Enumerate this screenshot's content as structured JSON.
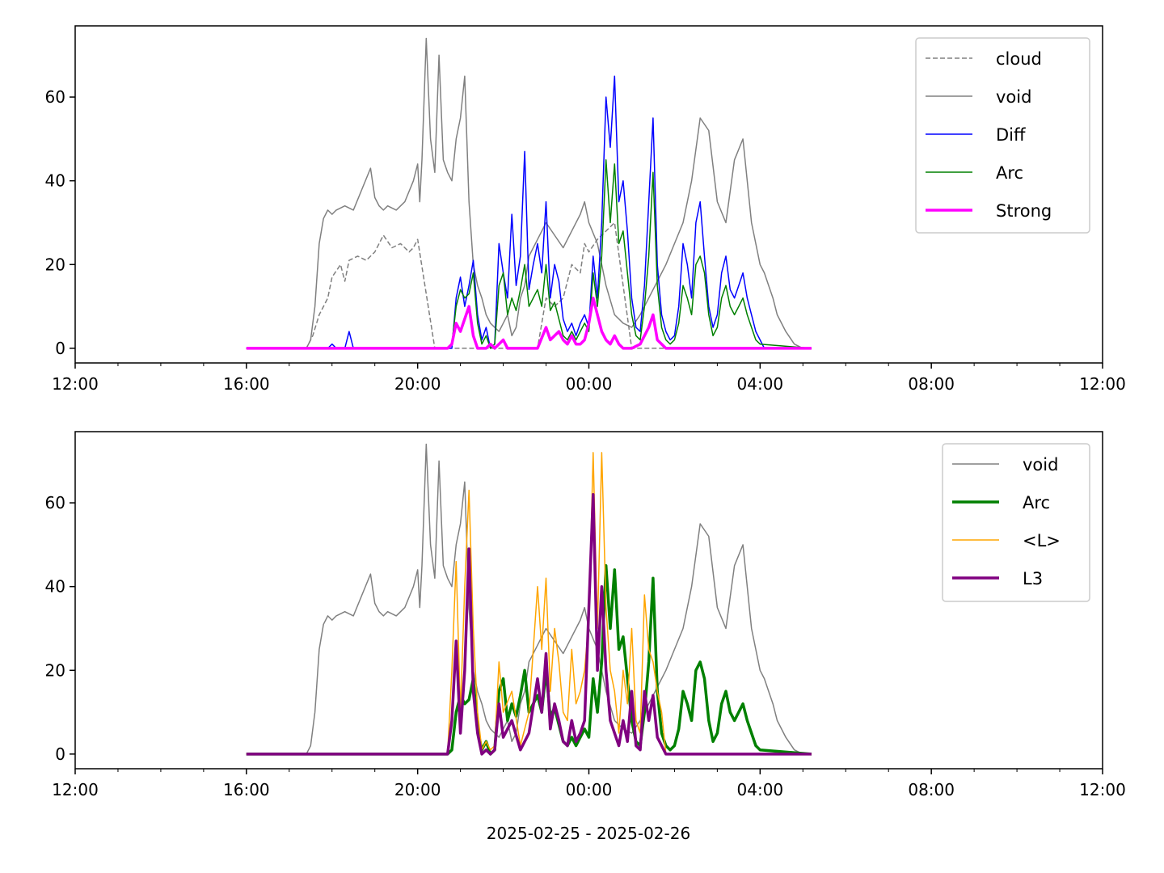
{
  "chart_data": [
    {
      "type": "line",
      "title": "",
      "xlabel": "",
      "ylabel": "",
      "xlim": [
        -4,
        20
      ],
      "ylim": [
        -3.5,
        77
      ],
      "x_ticks": [
        -4,
        0,
        4,
        8,
        12,
        16,
        20
      ],
      "x_tick_labels": [
        "12:00",
        "16:00",
        "20:00",
        "00:00",
        "04:00",
        "08:00",
        "12:00"
      ],
      "y_ticks": [
        0,
        20,
        40,
        60
      ],
      "y_tick_labels": [
        "0",
        "20",
        "40",
        "60"
      ],
      "legend_position": "top-right",
      "grid": false,
      "series": [
        {
          "name": "cloud",
          "color": "#808080",
          "style": "dashed",
          "width": 1.5,
          "x": [
            0,
            1.4,
            1.55,
            1.7,
            1.8,
            1.9,
            2.0,
            2.2,
            2.3,
            2.4,
            2.6,
            2.8,
            3.0,
            3.2,
            3.4,
            3.6,
            3.8,
            3.9,
            4.0,
            4.4,
            4.8,
            5.0,
            5.4,
            5.8,
            6.0,
            6.3,
            6.6,
            6.8,
            7.0,
            7.2,
            7.4,
            7.6,
            7.8,
            7.9,
            8.0,
            8.2,
            8.4,
            8.6,
            9.0,
            9.4,
            9.8,
            10.2,
            10.6,
            11.0,
            11.4,
            11.8,
            12.0,
            12.1,
            12.3,
            12.5,
            12.8,
            13.2
          ],
          "y": [
            0,
            0,
            3,
            8,
            10,
            12,
            17,
            20,
            16,
            21,
            22,
            21,
            23,
            27,
            24,
            25,
            23,
            24,
            26,
            0,
            0,
            0,
            0,
            0,
            0,
            0,
            0,
            0,
            12,
            10,
            12,
            20,
            18,
            25,
            23,
            26,
            28,
            30,
            0,
            0,
            0,
            0,
            0,
            0,
            0,
            0,
            0,
            0,
            0,
            0,
            0,
            0
          ]
        },
        {
          "name": "void",
          "color": "#808080",
          "style": "solid",
          "width": 1.5,
          "x": [
            0,
            1.4,
            1.5,
            1.6,
            1.7,
            1.8,
            1.9,
            2.0,
            2.1,
            2.3,
            2.5,
            2.7,
            2.9,
            3.0,
            3.1,
            3.2,
            3.3,
            3.5,
            3.7,
            3.9,
            4.0,
            4.05,
            4.1,
            4.2,
            4.3,
            4.4,
            4.5,
            4.6,
            4.7,
            4.8,
            4.9,
            5.0,
            5.1,
            5.2,
            5.3,
            5.4,
            5.5,
            5.6,
            5.7,
            5.8,
            5.9,
            6.0,
            6.1,
            6.2,
            6.3,
            6.4,
            6.5,
            6.6,
            6.8,
            7.0,
            7.2,
            7.4,
            7.6,
            7.8,
            7.9,
            8.0,
            8.2,
            8.4,
            8.6,
            8.8,
            9.0,
            9.2,
            9.4,
            9.6,
            9.8,
            10.0,
            10.2,
            10.4,
            10.6,
            10.8,
            11.0,
            11.2,
            11.4,
            11.6,
            11.8,
            11.9,
            12.0,
            12.1,
            12.2,
            12.3,
            12.4,
            12.6,
            12.8,
            13.0,
            13.2
          ],
          "y": [
            0,
            0,
            2,
            10,
            25,
            31,
            33,
            32,
            33,
            34,
            33,
            38,
            43,
            36,
            34,
            33,
            34,
            33,
            35,
            40,
            44,
            35,
            45,
            74,
            50,
            42,
            70,
            45,
            42,
            40,
            50,
            55,
            65,
            35,
            20,
            15,
            12,
            8,
            6,
            5,
            4,
            6,
            8,
            3,
            5,
            12,
            15,
            22,
            26,
            30,
            27,
            24,
            28,
            32,
            35,
            30,
            25,
            15,
            8,
            6,
            5,
            8,
            12,
            16,
            20,
            25,
            30,
            40,
            55,
            52,
            35,
            30,
            45,
            50,
            30,
            25,
            20,
            18,
            15,
            12,
            8,
            4,
            1,
            0,
            0
          ]
        },
        {
          "name": "Diff",
          "color": "#0000ff",
          "style": "solid",
          "width": 1.5,
          "x": [
            0,
            1.9,
            2.0,
            2.1,
            2.3,
            2.4,
            2.5,
            2.6,
            4.8,
            4.9,
            5.0,
            5.1,
            5.2,
            5.3,
            5.4,
            5.5,
            5.6,
            5.7,
            5.8,
            5.9,
            6.0,
            6.1,
            6.2,
            6.3,
            6.4,
            6.5,
            6.6,
            6.7,
            6.8,
            6.9,
            7.0,
            7.1,
            7.2,
            7.3,
            7.4,
            7.5,
            7.6,
            7.7,
            7.8,
            7.9,
            8.0,
            8.1,
            8.2,
            8.3,
            8.4,
            8.5,
            8.6,
            8.7,
            8.8,
            8.9,
            9.0,
            9.1,
            9.2,
            9.3,
            9.4,
            9.5,
            9.6,
            9.7,
            9.8,
            9.9,
            10.0,
            10.1,
            10.2,
            10.3,
            10.4,
            10.5,
            10.6,
            10.7,
            10.8,
            10.9,
            11.0,
            11.1,
            11.2,
            11.3,
            11.4,
            11.5,
            11.6,
            11.7,
            11.8,
            11.9,
            12.0,
            12.1,
            13.2
          ],
          "y": [
            0,
            0,
            1,
            0,
            0,
            4,
            0,
            0,
            0,
            12,
            17,
            10,
            15,
            21,
            8,
            2,
            5,
            0,
            1,
            25,
            18,
            12,
            32,
            15,
            22,
            47,
            14,
            20,
            25,
            18,
            35,
            12,
            20,
            16,
            7,
            4,
            6,
            3,
            6,
            8,
            5,
            22,
            12,
            30,
            60,
            48,
            65,
            35,
            40,
            28,
            12,
            5,
            4,
            15,
            35,
            55,
            20,
            8,
            4,
            2,
            3,
            10,
            25,
            20,
            12,
            30,
            35,
            22,
            10,
            5,
            8,
            18,
            22,
            14,
            12,
            15,
            18,
            12,
            8,
            4,
            2,
            0,
            0
          ]
        },
        {
          "name": "Arc",
          "color": "#008000",
          "style": "solid",
          "width": 1.5,
          "x": [
            0,
            4.7,
            4.8,
            4.9,
            5.0,
            5.1,
            5.2,
            5.3,
            5.4,
            5.5,
            5.6,
            5.7,
            5.8,
            5.9,
            6.0,
            6.1,
            6.2,
            6.3,
            6.4,
            6.5,
            6.6,
            6.7,
            6.8,
            6.9,
            7.0,
            7.1,
            7.2,
            7.3,
            7.4,
            7.5,
            7.6,
            7.7,
            7.8,
            7.9,
            8.0,
            8.1,
            8.2,
            8.3,
            8.4,
            8.5,
            8.6,
            8.7,
            8.8,
            8.9,
            9.0,
            9.1,
            9.2,
            9.3,
            9.4,
            9.5,
            9.6,
            9.7,
            9.8,
            9.9,
            10.0,
            10.1,
            10.2,
            10.3,
            10.4,
            10.5,
            10.6,
            10.7,
            10.8,
            10.9,
            11.0,
            11.1,
            11.2,
            11.3,
            11.4,
            11.5,
            11.6,
            11.7,
            11.8,
            11.9,
            12.0,
            13.2
          ],
          "y": [
            0,
            0,
            1,
            10,
            14,
            12,
            13,
            18,
            6,
            1,
            3,
            0,
            1,
            15,
            18,
            8,
            12,
            9,
            14,
            20,
            10,
            12,
            14,
            10,
            20,
            9,
            11,
            7,
            3,
            2,
            4,
            2,
            4,
            6,
            4,
            18,
            10,
            22,
            45,
            30,
            44,
            25,
            28,
            18,
            8,
            3,
            2,
            10,
            22,
            42,
            15,
            5,
            2,
            1,
            2,
            6,
            15,
            12,
            8,
            20,
            22,
            18,
            8,
            3,
            5,
            12,
            15,
            10,
            8,
            10,
            12,
            8,
            5,
            2,
            1,
            0
          ]
        },
        {
          "name": "Strong",
          "color": "#ff00ff",
          "style": "solid",
          "width": 3.5,
          "x": [
            0,
            4.7,
            4.8,
            4.9,
            5.0,
            5.1,
            5.2,
            5.3,
            5.4,
            5.5,
            5.6,
            5.7,
            5.8,
            6.0,
            6.1,
            6.2,
            6.3,
            6.4,
            6.6,
            6.8,
            7.0,
            7.1,
            7.2,
            7.3,
            7.4,
            7.5,
            7.6,
            7.7,
            7.8,
            7.9,
            8.0,
            8.1,
            8.2,
            8.3,
            8.4,
            8.5,
            8.6,
            8.7,
            8.8,
            9.0,
            9.2,
            9.4,
            9.5,
            9.6,
            9.7,
            9.8,
            10.0,
            13.2
          ],
          "y": [
            0,
            0,
            1,
            6,
            4,
            7,
            10,
            3,
            0,
            0,
            0,
            1,
            0,
            2,
            0,
            0,
            0,
            0,
            0,
            0,
            5,
            2,
            3,
            4,
            2,
            1,
            3,
            1,
            1,
            2,
            6,
            12,
            8,
            4,
            2,
            1,
            3,
            1,
            0,
            0,
            1,
            5,
            8,
            2,
            1,
            0,
            0,
            0
          ]
        }
      ]
    },
    {
      "type": "line",
      "title": "",
      "xlabel": "2025-02-25 - 2025-02-26",
      "ylabel": "",
      "xlim": [
        -4,
        20
      ],
      "ylim": [
        -3.5,
        77
      ],
      "x_ticks": [
        -4,
        0,
        4,
        8,
        12,
        16,
        20
      ],
      "x_tick_labels": [
        "12:00",
        "16:00",
        "20:00",
        "00:00",
        "04:00",
        "08:00",
        "12:00"
      ],
      "y_ticks": [
        0,
        20,
        40,
        60
      ],
      "y_tick_labels": [
        "0",
        "20",
        "40",
        "60"
      ],
      "legend_position": "top-right",
      "grid": false,
      "series": [
        {
          "name": "void",
          "color": "#808080",
          "style": "solid",
          "width": 1.5,
          "same_as": "void"
        },
        {
          "name": "Arc",
          "color": "#008000",
          "style": "solid",
          "width": 3.5,
          "same_as": "Arc"
        },
        {
          "name": "<L>",
          "color": "#ffa500",
          "style": "solid",
          "width": 1.5,
          "x": [
            0,
            4.7,
            4.8,
            4.9,
            5.0,
            5.1,
            5.2,
            5.3,
            5.4,
            5.5,
            5.6,
            5.7,
            5.8,
            5.9,
            6.0,
            6.2,
            6.4,
            6.6,
            6.8,
            6.9,
            7.0,
            7.1,
            7.2,
            7.3,
            7.4,
            7.5,
            7.6,
            7.7,
            7.8,
            7.9,
            8.0,
            8.1,
            8.2,
            8.3,
            8.4,
            8.5,
            8.6,
            8.7,
            8.8,
            8.9,
            9.0,
            9.1,
            9.2,
            9.3,
            9.4,
            9.5,
            9.6,
            9.7,
            9.8,
            13.2
          ],
          "y": [
            0,
            0,
            20,
            46,
            10,
            40,
            63,
            30,
            10,
            1,
            3,
            1,
            2,
            22,
            10,
            15,
            2,
            10,
            40,
            25,
            42,
            15,
            30,
            22,
            10,
            8,
            25,
            12,
            15,
            20,
            32,
            72,
            30,
            72,
            35,
            20,
            15,
            5,
            20,
            12,
            30,
            8,
            5,
            38,
            25,
            22,
            15,
            10,
            0,
            0
          ]
        },
        {
          "name": "L3",
          "color": "#800080",
          "style": "solid",
          "width": 3.5,
          "x": [
            0,
            4.7,
            4.8,
            4.9,
            5.0,
            5.1,
            5.2,
            5.3,
            5.4,
            5.5,
            5.6,
            5.7,
            5.8,
            5.9,
            6.0,
            6.2,
            6.4,
            6.6,
            6.8,
            6.9,
            7.0,
            7.1,
            7.2,
            7.3,
            7.4,
            7.5,
            7.6,
            7.7,
            7.8,
            7.9,
            8.0,
            8.1,
            8.2,
            8.3,
            8.4,
            8.5,
            8.6,
            8.7,
            8.8,
            8.9,
            9.0,
            9.1,
            9.2,
            9.3,
            9.4,
            9.5,
            9.6,
            9.7,
            9.8,
            13.2
          ],
          "y": [
            0,
            0,
            8,
            27,
            5,
            20,
            49,
            15,
            5,
            0,
            1,
            0,
            1,
            12,
            4,
            8,
            1,
            5,
            18,
            10,
            24,
            6,
            12,
            8,
            3,
            2,
            8,
            3,
            5,
            8,
            35,
            62,
            20,
            40,
            20,
            8,
            5,
            2,
            8,
            3,
            15,
            2,
            1,
            15,
            8,
            14,
            4,
            2,
            0,
            0
          ]
        }
      ]
    }
  ],
  "legend_top": [
    "cloud",
    "void",
    "Diff",
    "Arc",
    "Strong"
  ],
  "legend_bottom": [
    "void",
    "Arc",
    "<L>",
    "L3"
  ]
}
